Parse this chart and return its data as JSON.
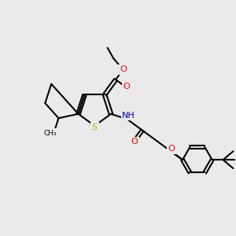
{
  "background_color": "#eaeaea",
  "atom_colors": {
    "S": "#c8b400",
    "O": "#ff0000",
    "N": "#0000cc",
    "H": "#4a9090",
    "C": "#000000"
  },
  "bond_color": "#000000",
  "bond_lw": 1.5,
  "figsize": [
    3.0,
    3.0
  ],
  "dpi": 100
}
